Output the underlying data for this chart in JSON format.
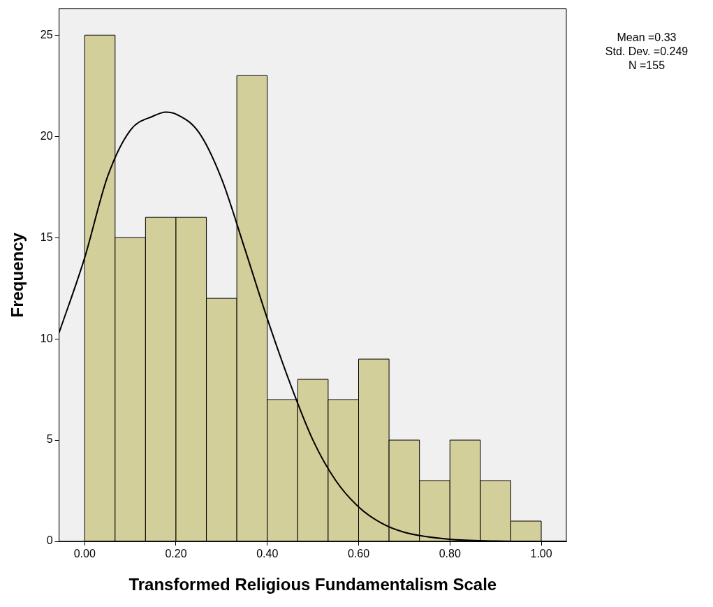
{
  "chart_data": {
    "type": "histogram",
    "xlabel": "Transformed Religious Fundamentalism Scale",
    "ylabel": "Frequency",
    "bins": [
      0,
      0.0667,
      0.1333,
      0.2,
      0.2667,
      0.3333,
      0.4,
      0.4667,
      0.5333,
      0.6,
      0.6667,
      0.7333,
      0.8,
      0.8667,
      0.9333,
      1
    ],
    "values": [
      25,
      15,
      16,
      16,
      12,
      23,
      7,
      8,
      7,
      9,
      5,
      3,
      5,
      3,
      1
    ],
    "color": "#d3cf9a",
    "series": [
      {
        "type": "line",
        "color": "#000000",
        "x": [
          -0.056,
          0,
          0.05,
          0.1,
          0.15,
          0.178,
          0.2,
          0.25,
          0.3,
          0.35,
          0.4,
          0.45,
          0.5,
          0.55,
          0.6,
          0.65,
          0.7,
          0.8,
          0.9,
          1.0,
          1.055
        ],
        "values": [
          10.3,
          14.0,
          18.0,
          20.3,
          21.0,
          21.2,
          21.1,
          20.2,
          17.9,
          14.5,
          11.0,
          7.8,
          5.0,
          3.0,
          1.7,
          0.9,
          0.45,
          0.1,
          0.02,
          0,
          0
        ]
      }
    ],
    "xlim": [
      -0.056,
      1.055
    ],
    "ylim": [
      0,
      26.3
    ],
    "xticks": [
      {
        "value": 0,
        "label": "0.00"
      },
      {
        "value": 0.2,
        "label": "0.20"
      },
      {
        "value": 0.4,
        "label": "0.40"
      },
      {
        "value": 0.6,
        "label": "0.60"
      },
      {
        "value": 0.8,
        "label": "0.80"
      },
      {
        "value": 1,
        "label": "1.00"
      }
    ],
    "yticks": [
      0,
      5,
      10,
      15,
      20,
      25
    ],
    "grid": false,
    "legend": false,
    "annotations": [
      "Mean =0.33",
      "Std. Dev. =0.249",
      "N =155"
    ]
  }
}
